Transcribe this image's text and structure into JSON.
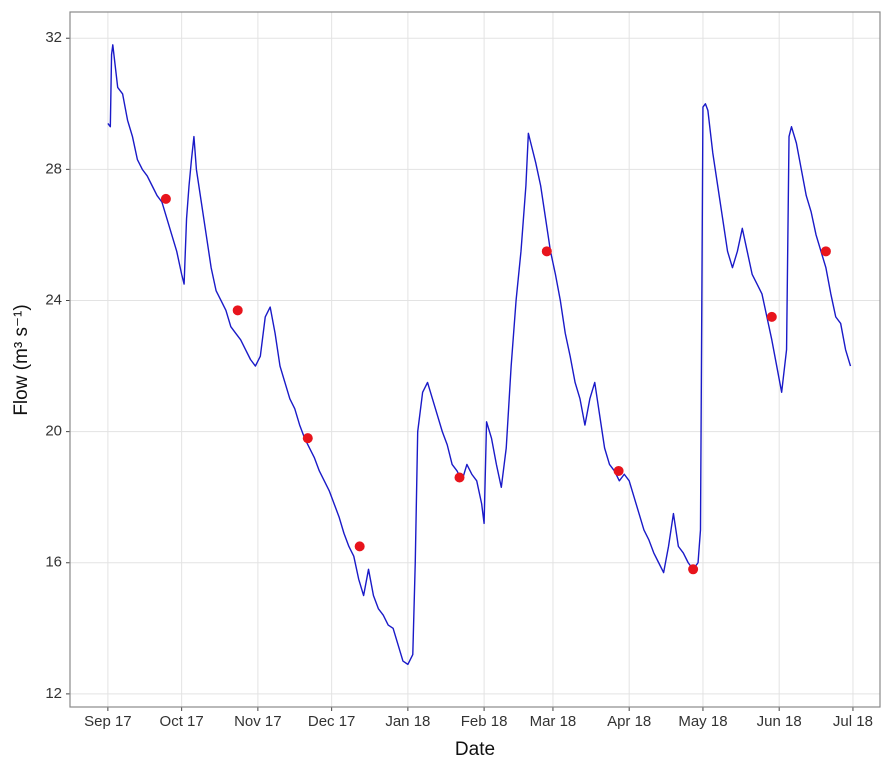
{
  "chart_data": {
    "type": "line",
    "x_label": "Date",
    "y_label": "Flow (m³ s⁻¹)",
    "xlim": [
      -15.4,
      314
    ],
    "ylim": [
      11.6,
      32.8
    ],
    "xticks": [
      {
        "value": 0,
        "label": "Sep 17"
      },
      {
        "value": 30,
        "label": "Oct 17"
      },
      {
        "value": 61,
        "label": "Nov 17"
      },
      {
        "value": 91,
        "label": "Dec 17"
      },
      {
        "value": 122,
        "label": "Jan 18"
      },
      {
        "value": 153,
        "label": "Feb 18"
      },
      {
        "value": 181,
        "label": "Mar 18"
      },
      {
        "value": 212,
        "label": "Apr 18"
      },
      {
        "value": 242,
        "label": "May 18"
      },
      {
        "value": 273,
        "label": "Jun 18"
      },
      {
        "value": 303,
        "label": "Jul 18"
      }
    ],
    "yticks": [
      12,
      16,
      20,
      24,
      28,
      32
    ],
    "grid": true,
    "series": [
      {
        "type": "line",
        "color": "#1a1ac8",
        "x": [
          0,
          1,
          1.5,
          2,
          4,
          6,
          8,
          10,
          12,
          14,
          16,
          18,
          20,
          22,
          24,
          26,
          28,
          30,
          31,
          32,
          33,
          34,
          35,
          36,
          38,
          40,
          42,
          44,
          46,
          48,
          50,
          52,
          54,
          56,
          58,
          60,
          62,
          64,
          66,
          68,
          70,
          72,
          74,
          76,
          78,
          80,
          82,
          84,
          86,
          88,
          90,
          92,
          94,
          96,
          98,
          100,
          102,
          104,
          106,
          108,
          110,
          112,
          114,
          116,
          118,
          120,
          122,
          124,
          125,
          126,
          128,
          130,
          132,
          134,
          136,
          138,
          140,
          142,
          144,
          146,
          148,
          150,
          152,
          153,
          154,
          156,
          158,
          160,
          162,
          164,
          166,
          168,
          170,
          171,
          172,
          174,
          176,
          178,
          180,
          182,
          184,
          186,
          188,
          190,
          192,
          194,
          196,
          198,
          200,
          202,
          204,
          206,
          208,
          210,
          212,
          214,
          216,
          218,
          220,
          222,
          224,
          226,
          228,
          230,
          232,
          234,
          236,
          238,
          240,
          241,
          242,
          243,
          244,
          246,
          248,
          250,
          252,
          254,
          256,
          258,
          260,
          262,
          264,
          266,
          268,
          270,
          272,
          274,
          276,
          277,
          278,
          280,
          282,
          284,
          286,
          288,
          290,
          292,
          294,
          296,
          298,
          300,
          302
        ],
        "values": [
          29.4,
          29.3,
          31.5,
          31.8,
          30.5,
          30.3,
          29.5,
          29,
          28.3,
          28,
          27.8,
          27.5,
          27.2,
          27,
          26.5,
          26,
          25.5,
          24.8,
          24.5,
          26.5,
          27.5,
          28.3,
          29,
          28,
          27,
          26,
          25,
          24.3,
          24,
          23.7,
          23.2,
          23,
          22.8,
          22.5,
          22.2,
          22,
          22.3,
          23.5,
          23.8,
          23,
          22,
          21.5,
          21,
          20.7,
          20.2,
          19.8,
          19.5,
          19.2,
          18.8,
          18.5,
          18.2,
          17.8,
          17.4,
          16.9,
          16.5,
          16.2,
          15.5,
          15,
          15.8,
          15,
          14.6,
          14.4,
          14.1,
          14,
          13.5,
          13,
          12.9,
          13.2,
          16,
          20,
          21.2,
          21.5,
          21,
          20.5,
          20,
          19.6,
          19,
          18.8,
          18.5,
          19,
          18.7,
          18.5,
          17.8,
          17.2,
          20.3,
          19.8,
          19,
          18.3,
          19.5,
          22,
          24,
          25.5,
          27.5,
          29.1,
          28.8,
          28.2,
          27.5,
          26.5,
          25.5,
          24.8,
          24,
          23,
          22.3,
          21.5,
          21,
          20.2,
          21,
          21.5,
          20.5,
          19.5,
          19,
          18.8,
          18.5,
          18.7,
          18.5,
          18,
          17.5,
          17,
          16.7,
          16.3,
          16,
          15.7,
          16.5,
          17.5,
          16.5,
          16.3,
          16,
          15.8,
          16,
          17,
          29.9,
          30,
          29.8,
          28.5,
          27.5,
          26.5,
          25.5,
          25,
          25.5,
          26.2,
          25.5,
          24.8,
          24.5,
          24.2,
          23.5,
          22.8,
          22,
          21.2,
          22.5,
          29,
          29.3,
          28.8,
          28,
          27.2,
          26.7,
          26,
          25.5,
          25,
          24.2,
          23.5,
          23.3,
          22.5,
          22
        ]
      },
      {
        "type": "scatter",
        "color": "#e8141c",
        "x": [
          23.6,
          52.8,
          81.3,
          102.4,
          143,
          178.5,
          207.7,
          238,
          270,
          292
        ],
        "values": [
          27.1,
          23.7,
          19.8,
          16.5,
          18.6,
          25.5,
          18.8,
          15.8,
          23.5,
          25.5
        ]
      }
    ]
  }
}
